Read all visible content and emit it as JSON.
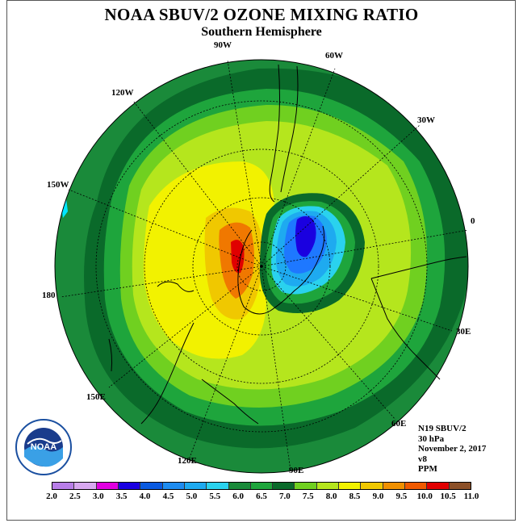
{
  "title": "NOAA SBUV/2 OZONE MIXING RATIO",
  "subtitle": "Southern Hemisphere",
  "longitude_labels": {
    "lon_90W": "90W",
    "lon_60W": "60W",
    "lon_30W": "30W",
    "lon_0": "0",
    "lon_30E": "30E",
    "lon_60E": "60E",
    "lon_90E": "90E",
    "lon_120E": "120E",
    "lon_150E": "150E",
    "lon_180": "180",
    "lon_150W": "150W",
    "lon_120W": "120W"
  },
  "info": {
    "satellite": "N19 SBUV/2",
    "level": "30 hPa",
    "date": "November 2, 2017",
    "version": "v8",
    "units": "PPM"
  },
  "logo_text": "NOAA",
  "colors": {
    "ring_outer": "#1a8a3a",
    "ring_dark": "#0a6a2a",
    "green_med": "#1ea53c",
    "green_light": "#55c23a",
    "yellow_green": "#b5e61d",
    "yellow": "#f2f200",
    "gold": "#f0c800",
    "orange": "#f07800",
    "red": "#e00000",
    "blue_dark": "#0000d0",
    "blue_mid": "#1e78ff",
    "cyan": "#00d2ff"
  },
  "legend": {
    "ticks": [
      "2.0",
      "2.5",
      "3.0",
      "3.5",
      "4.0",
      "4.5",
      "5.0",
      "5.5",
      "6.0",
      "6.5",
      "7.0",
      "7.5",
      "8.0",
      "8.5",
      "9.0",
      "9.5",
      "10.0",
      "10.5",
      "11.0"
    ],
    "colors": [
      "#b87ee8",
      "#d8a8f0",
      "#e000e0",
      "#1a00e0",
      "#0a5ae0",
      "#1e8cf0",
      "#1eaaf0",
      "#2ad2ee",
      "#1a8a3a",
      "#1ea53c",
      "#0a6a2a",
      "#70d020",
      "#b5e61d",
      "#f2f200",
      "#f0c800",
      "#f09000",
      "#f05a00",
      "#e00000",
      "#8c5028"
    ]
  }
}
